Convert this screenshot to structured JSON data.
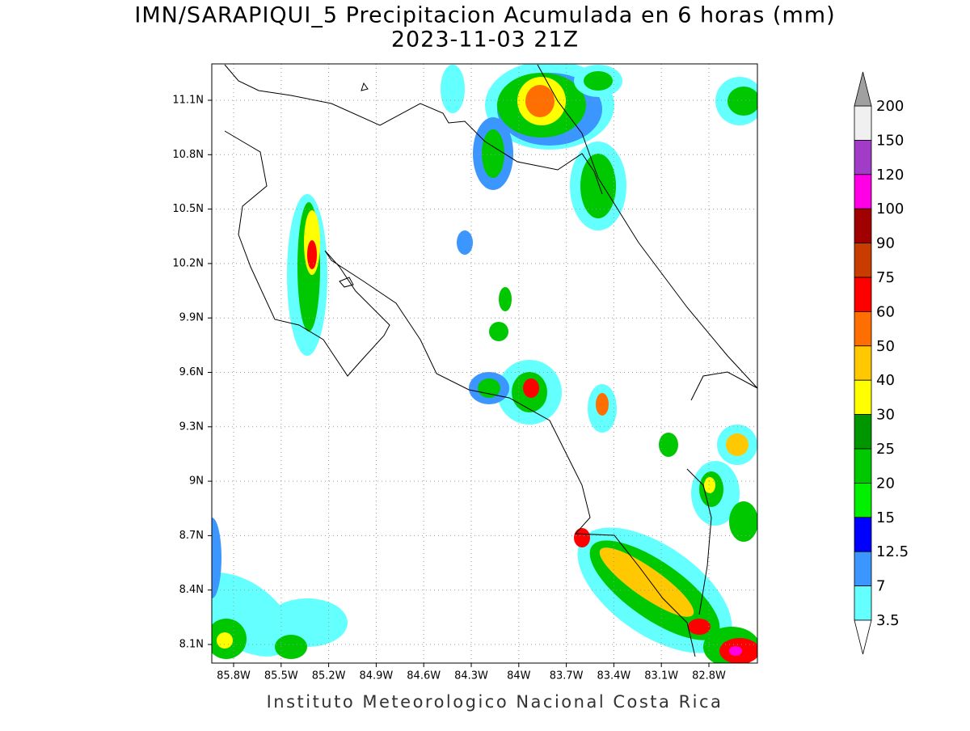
{
  "header": {
    "title": "IMN/SARAPIQUI_5 Precipitacion Acumulada en 6 horas (mm)",
    "subtitle": "2023-11-03 21Z"
  },
  "map": {
    "lat_ticks": [
      "11.1N",
      "10.8N",
      "10.5N",
      "10.2N",
      "9.9N",
      "9.6N",
      "9.3N",
      "9N",
      "8.7N",
      "8.4N",
      "8.1N"
    ],
    "lon_ticks": [
      "85.8W",
      "85.5W",
      "85.2W",
      "84.9W",
      "84.6W",
      "84.3W",
      "84W",
      "83.7W",
      "83.4W",
      "83.1W",
      "82.8W"
    ]
  },
  "colorbar": {
    "labels": [
      200,
      150,
      120,
      100,
      90,
      75,
      60,
      50,
      40,
      30,
      25,
      20,
      15,
      12.5,
      7,
      3.5
    ],
    "colors": [
      "#f0f0f0",
      "#a03cc8",
      "#ff00e6",
      "#a00000",
      "#c83c00",
      "#ff0000",
      "#ff6e00",
      "#ffc800",
      "#ffff00",
      "#009600",
      "#00c800",
      "#00f000",
      "#0000ff",
      "#3c96ff",
      "#64ffff"
    ],
    "over_color": "#a0a0a0",
    "under_color": "#ffffff"
  },
  "footer": "Instituto Meteorologico Nacional Costa Rica"
}
